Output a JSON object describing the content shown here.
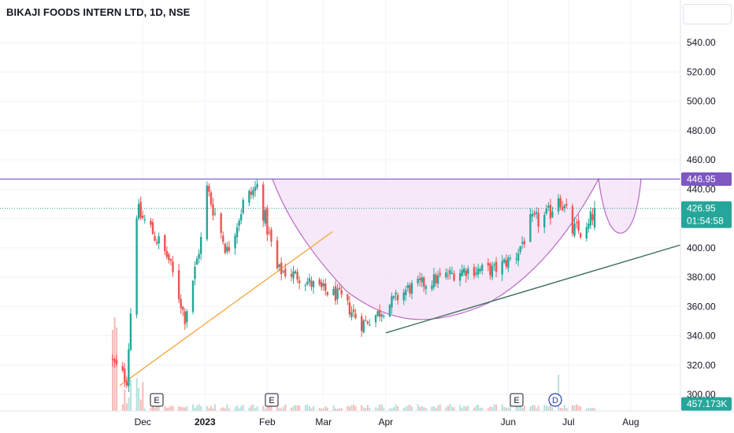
{
  "header": {
    "title": "BIKAJI FOODS INTERN LTD, 1D, NSE"
  },
  "price_axis": {
    "ticks": [
      "300.00",
      "320.00",
      "340.00",
      "360.00",
      "380.00",
      "400.00",
      "420.00",
      "440.00",
      "460.00",
      "480.00",
      "500.00",
      "520.00",
      "540.00"
    ]
  },
  "time_axis": {
    "labels": [
      "Dec",
      "2023",
      "Feb",
      "Mar",
      "Apr",
      "Jun",
      "Jul",
      "Aug"
    ]
  },
  "markers": {
    "resistance_label": "446.95",
    "last_price_label": "426.95",
    "countdown_label": "01:54:58",
    "volume_label": "457.173K",
    "events": [
      "E",
      "E",
      "E",
      "D"
    ]
  },
  "colors": {
    "up": "#26a69a",
    "down": "#ef5350",
    "resistance": "#7e57c2",
    "cup_fill": "#f3e0f5",
    "cup_stroke": "#ba68c8",
    "trend_orange": "#f7a43b",
    "trend_green": "#3c6f5a",
    "vol_up": "#b2dfdb",
    "vol_down": "#f8b6b4"
  },
  "chart_data": {
    "type": "candlestick",
    "title": "BIKAJI FOODS INTERN LTD, 1D, NSE",
    "y_range": [
      293,
      552
    ],
    "date_range": [
      "2022-11-16",
      "2023-08-05"
    ],
    "resistance": 446.95,
    "last_price": 426.95,
    "last_volume": "457.173K",
    "series": [
      {
        "date": "2022-11-16",
        "value": 322
      },
      {
        "date": "2022-11-23",
        "value": 310
      },
      {
        "date": "2022-11-28",
        "value": 425
      },
      {
        "date": "2022-12-05",
        "value": 413
      },
      {
        "date": "2022-12-14",
        "value": 392
      },
      {
        "date": "2022-12-22",
        "value": 352
      },
      {
        "date": "2022-12-30",
        "value": 405
      },
      {
        "date": "2023-01-02",
        "value": 440
      },
      {
        "date": "2023-01-12",
        "value": 398
      },
      {
        "date": "2023-01-20",
        "value": 430
      },
      {
        "date": "2023-01-27",
        "value": 442
      },
      {
        "date": "2023-02-06",
        "value": 385
      },
      {
        "date": "2023-02-16",
        "value": 381
      },
      {
        "date": "2023-02-27",
        "value": 372
      },
      {
        "date": "2023-03-09",
        "value": 367
      },
      {
        "date": "2023-03-20",
        "value": 348
      },
      {
        "date": "2023-03-28",
        "value": 355
      },
      {
        "date": "2023-04-12",
        "value": 372
      },
      {
        "date": "2023-04-27",
        "value": 379
      },
      {
        "date": "2023-05-10",
        "value": 385
      },
      {
        "date": "2023-05-25",
        "value": 385
      },
      {
        "date": "2023-06-05",
        "value": 395
      },
      {
        "date": "2023-06-12",
        "value": 416
      },
      {
        "date": "2023-06-21",
        "value": 422
      },
      {
        "date": "2023-06-26",
        "value": 437
      },
      {
        "date": "2023-07-03",
        "value": 412
      },
      {
        "date": "2023-07-10",
        "value": 410
      },
      {
        "date": "2023-07-14",
        "value": 427
      }
    ]
  }
}
